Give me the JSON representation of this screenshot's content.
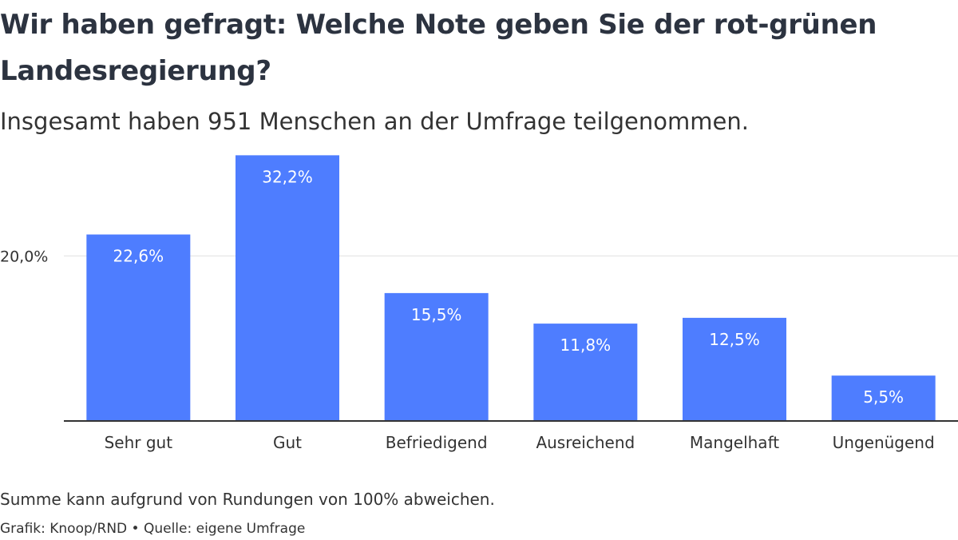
{
  "title": "Wir haben gefragt: Welche Note geben Sie der rot-grünen Landesregierung?",
  "subtitle": "Insgesamt haben 951 Menschen an der Umfrage teilgenommen.",
  "note": "Summe kann aufgrund von Rundungen von 100% abweichen.",
  "source": "Grafik: Knoop/RND • Quelle: eigene Umfrage",
  "colors": {
    "bar": "#4e7dff",
    "axis": "#333333",
    "grid": "#e0e0e0"
  },
  "chart_data": {
    "type": "bar",
    "categories": [
      "Sehr gut",
      "Gut",
      "Befriedigend",
      "Ausreichend",
      "Mangelhaft",
      "Ungenügend"
    ],
    "values": [
      22.6,
      32.2,
      15.5,
      11.8,
      12.5,
      5.5
    ],
    "value_labels": [
      "22,6%",
      "32,2%",
      "15,5%",
      "11,8%",
      "12,5%",
      "5,5%"
    ],
    "y_ticks": [
      20
    ],
    "y_tick_labels": [
      "20,0%"
    ],
    "ylim": [
      0,
      34
    ],
    "grid": true,
    "xlabel": "",
    "ylabel": ""
  }
}
